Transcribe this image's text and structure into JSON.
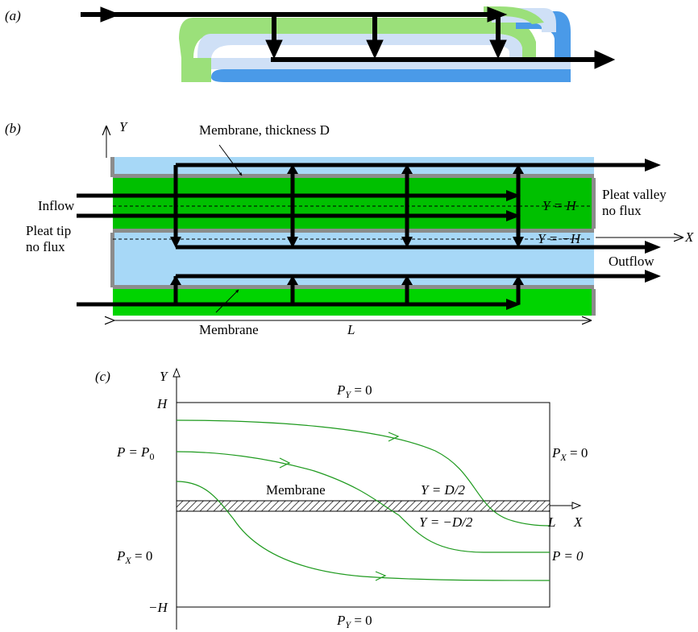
{
  "panel_a": {
    "label": "(a)",
    "colors": {
      "green": "#9BE07A",
      "light_blue": "#CFE0F6",
      "blue": "#4A9AE8",
      "arrow": "#000000"
    }
  },
  "panel_b": {
    "label": "(b)",
    "axis_y": "Y",
    "axis_x": "X",
    "membrane_thickness_label": "Membrane, thickness D",
    "inflow_label": "Inflow",
    "pleat_valley_label_1": "Pleat valley",
    "pleat_valley_label_2": "no flux",
    "pleat_tip_label_1": "Pleat tip",
    "pleat_tip_label_2": "no flux",
    "y_plus_h_label": "Y = H",
    "y_minus_h_label": "Y = −H",
    "outflow_label": "Outflow",
    "membrane_label": "Membrane",
    "length_label": "L",
    "colors": {
      "fluid": "#A7D8F7",
      "membrane": "#00D400",
      "membrane_dark": "#00C000",
      "wall": "#8C8C8C",
      "arrow": "#000000"
    }
  },
  "panel_c": {
    "label": "(c)",
    "axis_y": "Y",
    "axis_x": "X",
    "top_bc": {
      "main": "P",
      "sub": "Y",
      "rest": " = 0"
    },
    "bottom_bc": {
      "main": "P",
      "sub": "Y",
      "rest": " = 0"
    },
    "left_top_bc": {
      "main": "P = P",
      "sub": "0",
      "rest": ""
    },
    "left_bottom_bc": {
      "main": "P",
      "sub": "X",
      "rest": " = 0"
    },
    "right_top_bc": {
      "main": "P",
      "sub": "X",
      "rest": " = 0"
    },
    "right_bottom_bc": {
      "main": "P = 0",
      "sub": "",
      "rest": ""
    },
    "h_label": "H",
    "minus_h_label": "−H",
    "membrane_label": "Membrane",
    "y_plus_d_label": "Y = D/2",
    "y_minus_d_label": "Y = −D/2",
    "l_label": "L",
    "colors": {
      "streamline": "#1E9A1E",
      "line": "#000000"
    }
  }
}
